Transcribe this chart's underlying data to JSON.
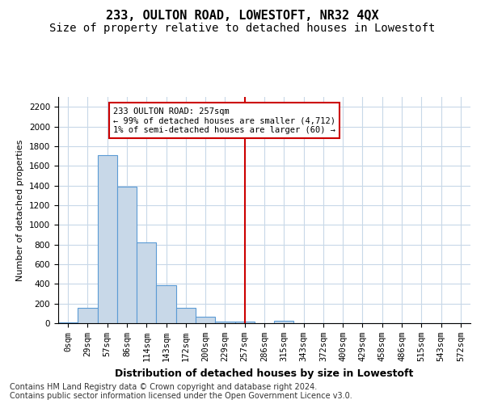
{
  "title": "233, OULTON ROAD, LOWESTOFT, NR32 4QX",
  "subtitle": "Size of property relative to detached houses in Lowestoft",
  "xlabel": "Distribution of detached houses by size in Lowestoft",
  "ylabel": "Number of detached properties",
  "bar_values": [
    10,
    155,
    1710,
    1390,
    825,
    385,
    160,
    65,
    20,
    15,
    0,
    25,
    0,
    0,
    0,
    0,
    0,
    0,
    0,
    0,
    0
  ],
  "bar_labels": [
    "0sqm",
    "29sqm",
    "57sqm",
    "86sqm",
    "114sqm",
    "143sqm",
    "172sqm",
    "200sqm",
    "229sqm",
    "257sqm",
    "286sqm",
    "315sqm",
    "343sqm",
    "372sqm",
    "400sqm",
    "429sqm",
    "458sqm",
    "486sqm",
    "515sqm",
    "543sqm",
    "572sqm"
  ],
  "bar_color": "#c8d8e8",
  "bar_edge_color": "#5b9bd5",
  "vline_x": 9,
  "vline_color": "#cc0000",
  "annotation_line1": "233 OULTON ROAD: 257sqm",
  "annotation_line2": "← 99% of detached houses are smaller (4,712)",
  "annotation_line3": "1% of semi-detached houses are larger (60) →",
  "annotation_box_color": "#cc0000",
  "ylim": [
    0,
    2300
  ],
  "yticks": [
    0,
    200,
    400,
    600,
    800,
    1000,
    1200,
    1400,
    1600,
    1800,
    2000,
    2200
  ],
  "background_color": "#ffffff",
  "grid_color": "#c8d8e8",
  "footer_line1": "Contains HM Land Registry data © Crown copyright and database right 2024.",
  "footer_line2": "Contains public sector information licensed under the Open Government Licence v3.0.",
  "title_fontsize": 11,
  "subtitle_fontsize": 10,
  "ylabel_fontsize": 8,
  "xlabel_fontsize": 9,
  "tick_fontsize": 7.5,
  "footer_fontsize": 7
}
